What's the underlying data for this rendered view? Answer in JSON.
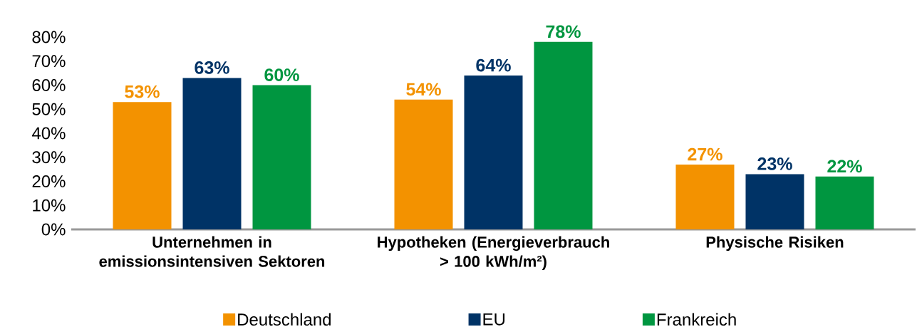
{
  "chart_data": {
    "type": "bar",
    "categories": [
      "Unternehmen in emissionsintensiven Sektoren",
      "Hypotheken (Energieverbrauch > 100 kWh/m²)",
      "Physische Risiken"
    ],
    "series": [
      {
        "name": "Deutschland",
        "color": "#f39200",
        "values": [
          53,
          54,
          27
        ],
        "value_labels": [
          "53%",
          "54%",
          "27%"
        ]
      },
      {
        "name": "EU",
        "color": "#003366",
        "values": [
          63,
          64,
          23
        ],
        "value_labels": [
          "63%",
          "64%",
          "23%"
        ]
      },
      {
        "name": "Frankreich",
        "color": "#009640",
        "values": [
          60,
          78,
          22
        ],
        "value_labels": [
          "60%",
          "78%",
          "22%"
        ]
      }
    ],
    "ylim": [
      0,
      80
    ],
    "yticks": [
      {
        "value": 0,
        "label": "0%"
      },
      {
        "value": 10,
        "label": "10%"
      },
      {
        "value": 20,
        "label": "20%"
      },
      {
        "value": 30,
        "label": "30%"
      },
      {
        "value": 40,
        "label": "40%"
      },
      {
        "value": 50,
        "label": "50%"
      },
      {
        "value": 60,
        "label": "60%"
      },
      {
        "value": 70,
        "label": "70%"
      },
      {
        "value": 80,
        "label": "80%"
      }
    ],
    "legend": "bottom"
  }
}
